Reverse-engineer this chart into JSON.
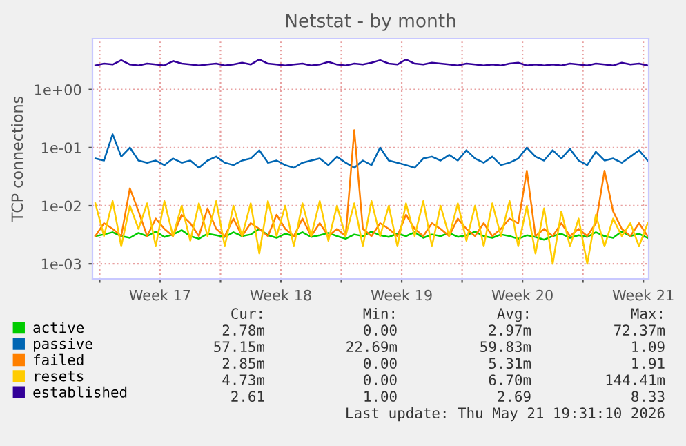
{
  "chart_data": {
    "type": "line",
    "title": "Netstat - by month",
    "ylabel": "TCP connections",
    "log": "y",
    "grid": true,
    "legend": "bottom",
    "line_style": "solid",
    "marker": "none",
    "ylim": [
      0.00055,
      7.5
    ],
    "yticks": [
      {
        "value": 0.001,
        "label": "1e-03"
      },
      {
        "value": 0.01,
        "label": "1e-02"
      },
      {
        "value": 0.1,
        "label": "1e-01"
      },
      {
        "value": 1,
        "label": "1e+00"
      }
    ],
    "xlim": [
      "2026-04-19T14:00",
      "2026-05-21T19:30"
    ],
    "xticks": [
      {
        "value": "2026-04-20",
        "label": null
      },
      {
        "value": "2026-04-23T12:00",
        "label": "Week 17"
      },
      {
        "value": "2026-04-27",
        "label": null
      },
      {
        "value": "2026-04-30T12:00",
        "label": "Week 18"
      },
      {
        "value": "2026-05-04",
        "label": null
      },
      {
        "value": "2026-05-07T12:00",
        "label": "Week 19"
      },
      {
        "value": "2026-05-11",
        "label": null
      },
      {
        "value": "2026-05-14T12:00",
        "label": "Week 20"
      },
      {
        "value": "2026-05-18",
        "label": null
      },
      {
        "value": "2026-05-21T12:00",
        "label": "Week 21"
      }
    ],
    "x": [
      "2026-04-19T18:00",
      "2026-04-20T06:00",
      "2026-04-20T18:00",
      "2026-04-21T06:00",
      "2026-04-21T18:00",
      "2026-04-22T06:00",
      "2026-04-22T18:00",
      "2026-04-23T06:00",
      "2026-04-23T18:00",
      "2026-04-24T06:00",
      "2026-04-24T18:00",
      "2026-04-25T06:00",
      "2026-04-25T18:00",
      "2026-04-26T06:00",
      "2026-04-26T18:00",
      "2026-04-27T06:00",
      "2026-04-27T18:00",
      "2026-04-28T06:00",
      "2026-04-28T18:00",
      "2026-04-29T06:00",
      "2026-04-29T18:00",
      "2026-04-30T06:00",
      "2026-04-30T18:00",
      "2026-05-01T06:00",
      "2026-05-01T18:00",
      "2026-05-02T06:00",
      "2026-05-02T18:00",
      "2026-05-03T06:00",
      "2026-05-03T18:00",
      "2026-05-04T06:00",
      "2026-05-04T18:00",
      "2026-05-05T06:00",
      "2026-05-05T18:00",
      "2026-05-06T06:00",
      "2026-05-06T18:00",
      "2026-05-07T06:00",
      "2026-05-07T18:00",
      "2026-05-08T06:00",
      "2026-05-08T18:00",
      "2026-05-09T06:00",
      "2026-05-09T18:00",
      "2026-05-10T06:00",
      "2026-05-10T18:00",
      "2026-05-11T06:00",
      "2026-05-11T18:00",
      "2026-05-12T06:00",
      "2026-05-12T18:00",
      "2026-05-13T06:00",
      "2026-05-13T18:00",
      "2026-05-14T06:00",
      "2026-05-14T18:00",
      "2026-05-15T06:00",
      "2026-05-15T18:00",
      "2026-05-16T06:00",
      "2026-05-16T18:00",
      "2026-05-17T06:00",
      "2026-05-17T18:00",
      "2026-05-18T06:00",
      "2026-05-18T18:00",
      "2026-05-19T06:00",
      "2026-05-19T18:00",
      "2026-05-20T06:00",
      "2026-05-20T18:00",
      "2026-05-21T06:00",
      "2026-05-21T18:00"
    ],
    "series": [
      {
        "name": "active",
        "color": "#00cc00",
        "values": [
          0.003,
          0.0032,
          0.0035,
          0.003,
          0.0028,
          0.0034,
          0.003,
          0.0036,
          0.0029,
          0.0032,
          0.0038,
          0.003,
          0.0027,
          0.0033,
          0.0031,
          0.0029,
          0.0035,
          0.003,
          0.0032,
          0.004,
          0.0031,
          0.0028,
          0.0033,
          0.003,
          0.0035,
          0.0029,
          0.0031,
          0.0034,
          0.003,
          0.0027,
          0.0032,
          0.003,
          0.0036,
          0.0031,
          0.0029,
          0.0033,
          0.003,
          0.0035,
          0.0028,
          0.0032,
          0.003,
          0.0034,
          0.0029,
          0.0031,
          0.0036,
          0.003,
          0.0028,
          0.0032,
          0.003,
          0.0027,
          0.0031,
          0.0029,
          0.0026,
          0.003,
          0.0033,
          0.0028,
          0.0031,
          0.0029,
          0.0035,
          0.003,
          0.0028,
          0.0036,
          0.003,
          0.0033,
          0.0028
        ]
      },
      {
        "name": "passive",
        "color": "#0066b3",
        "values": [
          0.065,
          0.06,
          0.17,
          0.07,
          0.1,
          0.06,
          0.055,
          0.06,
          0.05,
          0.065,
          0.055,
          0.06,
          0.045,
          0.06,
          0.07,
          0.055,
          0.05,
          0.06,
          0.065,
          0.09,
          0.055,
          0.06,
          0.05,
          0.045,
          0.055,
          0.06,
          0.065,
          0.05,
          0.07,
          0.055,
          0.045,
          0.06,
          0.05,
          0.1,
          0.06,
          0.055,
          0.05,
          0.045,
          0.065,
          0.07,
          0.06,
          0.075,
          0.06,
          0.09,
          0.065,
          0.055,
          0.07,
          0.05,
          0.055,
          0.065,
          0.1,
          0.07,
          0.06,
          0.09,
          0.065,
          0.095,
          0.06,
          0.05,
          0.085,
          0.06,
          0.065,
          0.055,
          0.07,
          0.09,
          0.06
        ]
      },
      {
        "name": "failed",
        "color": "#ff8000",
        "values": [
          0.003,
          0.005,
          0.004,
          0.003,
          0.02,
          0.008,
          0.003,
          0.006,
          0.004,
          0.003,
          0.007,
          0.005,
          0.003,
          0.009,
          0.004,
          0.003,
          0.006,
          0.003,
          0.005,
          0.004,
          0.003,
          0.007,
          0.004,
          0.003,
          0.006,
          0.003,
          0.005,
          0.003,
          0.004,
          0.003,
          0.2,
          0.004,
          0.003,
          0.005,
          0.004,
          0.003,
          0.007,
          0.004,
          0.003,
          0.005,
          0.004,
          0.003,
          0.006,
          0.004,
          0.003,
          0.005,
          0.003,
          0.004,
          0.006,
          0.005,
          0.04,
          0.003,
          0.004,
          0.003,
          0.005,
          0.003,
          0.004,
          0.003,
          0.005,
          0.04,
          0.008,
          0.004,
          0.003,
          0.005,
          0.003
        ]
      },
      {
        "name": "resets",
        "color": "#ffcc00",
        "values": [
          0.011,
          0.003,
          0.012,
          0.002,
          0.01,
          0.004,
          0.011,
          0.002,
          0.012,
          0.003,
          0.01,
          0.0025,
          0.011,
          0.003,
          0.012,
          0.002,
          0.01,
          0.003,
          0.011,
          0.0015,
          0.012,
          0.003,
          0.01,
          0.002,
          0.011,
          0.003,
          0.012,
          0.0025,
          0.01,
          0.003,
          0.011,
          0.002,
          0.012,
          0.003,
          0.01,
          0.002,
          0.011,
          0.003,
          0.012,
          0.002,
          0.01,
          0.003,
          0.011,
          0.0025,
          0.01,
          0.002,
          0.011,
          0.003,
          0.012,
          0.002,
          0.01,
          0.0015,
          0.009,
          0.001,
          0.008,
          0.002,
          0.006,
          0.001,
          0.007,
          0.002,
          0.006,
          0.003,
          0.005,
          0.002,
          0.005
        ]
      },
      {
        "name": "established",
        "color": "#330099",
        "values": [
          2.6,
          2.8,
          2.7,
          3.2,
          2.7,
          2.6,
          2.8,
          2.7,
          2.6,
          3.1,
          2.8,
          2.7,
          2.6,
          2.7,
          2.8,
          2.6,
          2.7,
          2.9,
          2.7,
          3.3,
          2.8,
          2.7,
          2.6,
          2.7,
          2.8,
          2.6,
          2.7,
          3.0,
          2.7,
          2.6,
          2.8,
          2.7,
          2.9,
          3.2,
          2.8,
          2.7,
          3.3,
          2.8,
          2.7,
          2.9,
          2.8,
          2.7,
          2.6,
          2.8,
          2.7,
          2.6,
          2.7,
          2.6,
          2.8,
          2.9,
          2.6,
          2.7,
          2.6,
          2.7,
          2.6,
          2.8,
          2.7,
          2.6,
          2.8,
          2.7,
          2.6,
          2.9,
          2.7,
          2.8,
          2.6
        ]
      }
    ],
    "annotations": [
      "Cur:",
      "Min:",
      "Avg:",
      "Max:",
      "2.78m",
      "0.00",
      "2.97m",
      "72.37m",
      "57.15m",
      "22.69m",
      "59.83m",
      "1.09",
      "2.85m",
      "0.00",
      "5.31m",
      "1.91",
      "4.73m",
      "0.00",
      "6.70m",
      "144.41m",
      "2.61",
      "1.00",
      "2.69",
      "8.33",
      "Last update: Thu May 21 19:31:10 2026"
    ]
  }
}
